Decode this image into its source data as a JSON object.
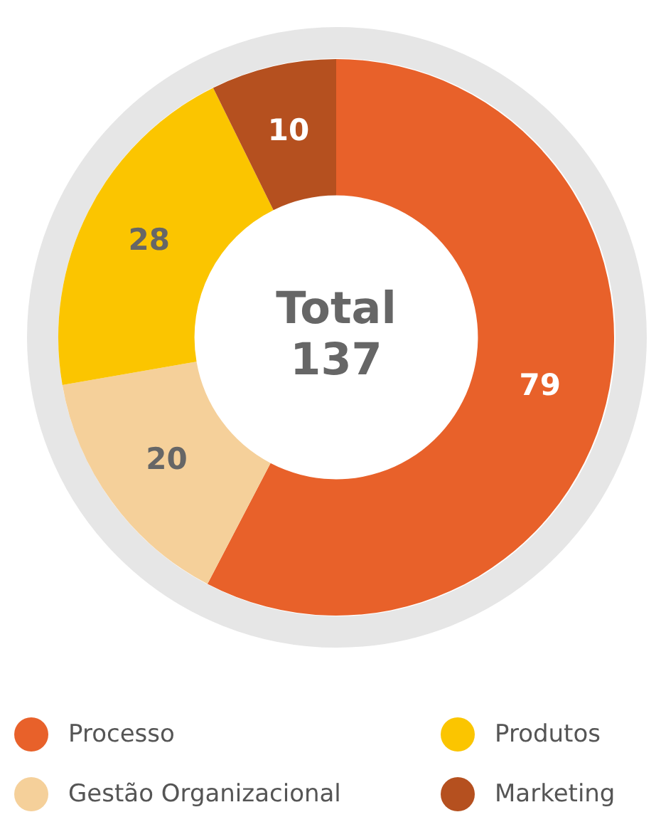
{
  "chart_data": {
    "type": "donut",
    "categories": [
      "Processo",
      "Gestão Organizacional",
      "Produtos",
      "Marketing"
    ],
    "values": [
      79,
      20,
      28,
      10
    ],
    "colors": [
      "#e8612a",
      "#f5d09a",
      "#fbc500",
      "#b5501f"
    ],
    "data_labels": true,
    "legend": "bottom",
    "annotations": [
      "Total",
      "137"
    ]
  }
}
